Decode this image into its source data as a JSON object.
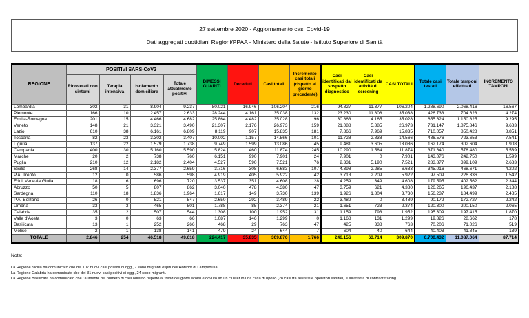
{
  "header": {
    "line1": "27 settembre 2020 - Aggiornamento casi Covid-19",
    "line2": "Dati aggregati quotidiani Regioni/PPAA - Ministero della Salute - Istituto Superiore di Sanità"
  },
  "table": {
    "region_header": "REGIONE",
    "group_header": "POSITIVI SARS-CoV2",
    "sub_headers": [
      "Ricoverati con sintomi",
      "Terapia intensiva",
      "Isolamento domiciliare",
      "Totale attualmente positivi"
    ],
    "headers": {
      "dimessi_guariti": "DIMESSI GUARITI",
      "deceduti": "Deceduti",
      "casi_totali": "Casi totali",
      "incremento_casi": "Incremento casi totali (rispetto al giorno precedente)",
      "casi_sospetto": "Casi identificati dal sospetto diagnostico",
      "casi_screening": "Casi identificati da attività di screening",
      "casi_totali_caps": "CASI TOTALI",
      "casi_testati": "Totale casi testati",
      "tamponi": "Totale tamponi effettuati",
      "incremento_tamponi": "INCREMENTO TAMPONI"
    },
    "rows": [
      {
        "region": "Lombardia",
        "values": [
          "302",
          "31",
          "8.904",
          "9.237",
          "80.021",
          "16.946",
          "106.204",
          "216",
          "94.827",
          "11.377",
          "106.204",
          "1.288.690",
          "2.068.416",
          "16.567"
        ]
      },
      {
        "region": "Piemonte",
        "values": [
          "166",
          "10",
          "2.457",
          "2.633",
          "28.244",
          "4.161",
          "35.038",
          "132",
          "23.230",
          "11.808",
          "35.038",
          "426.733",
          "704.623",
          "4.274"
        ]
      },
      {
        "region": "Emilia-Romagna",
        "values": [
          "201",
          "15",
          "4.466",
          "4.682",
          "25.864",
          "4.482",
          "35.028",
          "96",
          "30.863",
          "4.165",
          "35.028",
          "655.624",
          "1.150.825",
          "9.295"
        ]
      },
      {
        "region": "Veneto",
        "values": [
          "148",
          "21",
          "3.321",
          "3.490",
          "21.307",
          "2.176",
          "26.973",
          "159",
          "21.088",
          "5.885",
          "26.973",
          "731.147",
          "1.875.846",
          "9.683"
        ]
      },
      {
        "region": "Lazio",
        "values": [
          "610",
          "38",
          "6.161",
          "6.809",
          "8.119",
          "907",
          "15.835",
          "181",
          "7.866",
          "7.969",
          "15.835",
          "710.057",
          "850.428",
          "8.851"
        ]
      },
      {
        "region": "Toscana",
        "values": [
          "82",
          "23",
          "3.302",
          "3.407",
          "10.002",
          "1.157",
          "14.566",
          "101",
          "11.728",
          "2.838",
          "14.566",
          "486.576",
          "723.653",
          "7.541"
        ]
      },
      {
        "region": "Liguria",
        "values": [
          "137",
          "22",
          "1.579",
          "1.738",
          "9.749",
          "1.599",
          "13.086",
          "45",
          "9.481",
          "3.605",
          "13.086",
          "162.174",
          "302.604",
          "1.908"
        ]
      },
      {
        "region": "Campania",
        "values": [
          "400",
          "30",
          "5.160",
          "5.590",
          "5.824",
          "460",
          "11.874",
          "245",
          "10.290",
          "1.584",
          "11.874",
          "371.640",
          "578.480",
          "5.539"
        ]
      },
      {
        "region": "Marche",
        "values": [
          "20",
          "2",
          "738",
          "760",
          "6.151",
          "990",
          "7.901",
          "24",
          "7.901",
          "0",
          "7.901",
          "143.076",
          "242.750",
          "1.599"
        ]
      },
      {
        "region": "Puglia",
        "values": [
          "210",
          "12",
          "2.182",
          "2.404",
          "4.527",
          "590",
          "7.521",
          "76",
          "2.331",
          "5.190",
          "7.521",
          "283.877",
          "399.109",
          "2.683"
        ]
      },
      {
        "region": "Sicilia",
        "values": [
          "268",
          "14",
          "2.377",
          "2.659",
          "3.716",
          "308",
          "6.683",
          "107",
          "4.398",
          "2.285",
          "6.683",
          "345.016",
          "468.671",
          "4.202"
        ]
      },
      {
        "region": "P.A. Trento",
        "values": [
          "12",
          "0",
          "586",
          "598",
          "4.919",
          "405",
          "5.922",
          "42",
          "3.713",
          "2.209",
          "5.922",
          "97.509",
          "226.336",
          "1.542"
        ]
      },
      {
        "region": "Friuli Venezia Giulia",
        "values": [
          "18",
          "6",
          "696",
          "720",
          "3.537",
          "351",
          "4.608",
          "28",
          "4.259",
          "349",
          "4.608",
          "179.595",
          "402.562",
          "2.344"
        ]
      },
      {
        "region": "Abruzzo",
        "values": [
          "50",
          "5",
          "807",
          "862",
          "3.040",
          "478",
          "4.380",
          "47",
          "3.759",
          "621",
          "4.380",
          "126.265",
          "196.437",
          "2.188"
        ]
      },
      {
        "region": "Sardegna",
        "values": [
          "110",
          "18",
          "1.836",
          "1.964",
          "1.617",
          "149",
          "3.730",
          "139",
          "1.926",
          "1.804",
          "3.730",
          "156.237",
          "184.499",
          "2.485"
        ]
      },
      {
        "region": "P.A. Bolzano",
        "values": [
          "26",
          "0",
          "521",
          "547",
          "2.650",
          "292",
          "3.489",
          "22",
          "3.489",
          "0",
          "3.489",
          "90.172",
          "172.727",
          "2.242"
        ]
      },
      {
        "region": "Umbria",
        "values": [
          "33",
          "3",
          "465",
          "501",
          "1.788",
          "85",
          "2.374",
          "21",
          "1.651",
          "723",
          "2.374",
          "120.300",
          "200.150",
          "2.065"
        ]
      },
      {
        "region": "Calabria",
        "values": [
          "35",
          "2",
          "507",
          "544",
          "1.308",
          "100",
          "1.952",
          "31",
          "1.159",
          "793",
          "1.952",
          "195.309",
          "197.415",
          "1.870"
        ]
      },
      {
        "region": "Valle d'Aosta",
        "values": [
          "3",
          "0",
          "63",
          "66",
          "1.087",
          "146",
          "1.299",
          "0",
          "1.168",
          "131",
          "1.299",
          "19.826",
          "28.662",
          "178"
        ]
      },
      {
        "region": "Basilicata",
        "values": [
          "13",
          "1",
          "252",
          "266",
          "468",
          "29",
          "763",
          "47",
          "425",
          "338",
          "763",
          "70.206",
          "71.026",
          "519"
        ]
      },
      {
        "region": "Molise",
        "values": [
          "2",
          "1",
          "138",
          "141",
          "479",
          "24",
          "644",
          "7",
          "604",
          "40",
          "644",
          "40.403",
          "41.845",
          "139"
        ]
      }
    ],
    "total_row": {
      "label": "TOTALE",
      "values": [
        "2.846",
        "254",
        "46.518",
        "49.618",
        "224.417",
        "35.835",
        "309.870",
        "1.766",
        "246.156",
        "63.714",
        "309.870",
        "6.700.432",
        "11.087.064",
        "87.714"
      ]
    }
  },
  "notes": {
    "title": "Note:",
    "items": [
      "La Regione Sicilia ha comunicato che dei 107 nuovi casi positivi di oggi, 7 sono migranti ospiti dell'Hotspot di Lampedusa.",
      "La Regione Calabria ha comunicato che dei 31 nuovi casi positivi di oggi, 24 sono migranti.",
      "La Regione Basilicata ha comunicato che l'aumento del numero di casi odierno rispetto al trend dei giorni scorsi è dovuto ad un cluster in una casa di riposo (28 casi tra assistiti e operatori sanitari) e all'attività di contract tracing."
    ]
  },
  "colors": {
    "green": "#00b050",
    "red": "#ff1410",
    "orange": "#ffc000",
    "yellow": "#ffff00",
    "blue": "#00b0f0",
    "light_blue": "#b4c7e7",
    "gray": "#bfbfbf",
    "light_gray": "#d9d9d9"
  }
}
